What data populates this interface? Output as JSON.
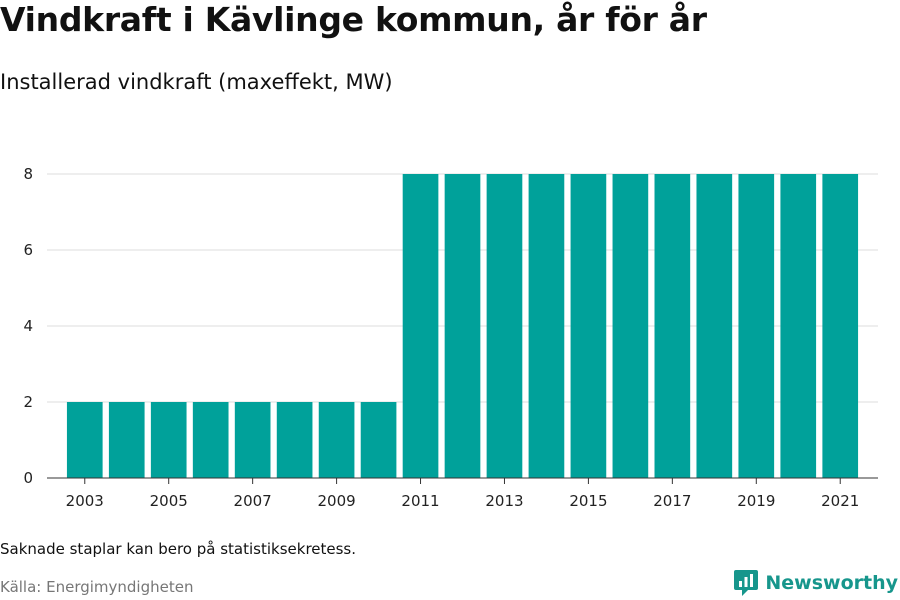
{
  "header": {
    "title": "Vindkraft i Kävlinge kommun, år för år",
    "subtitle": "Installerad vindkraft (maxeffekt, MW)"
  },
  "footer": {
    "note": "Saknade staplar kan bero på statistiksekretess.",
    "source": "Källa: Energimyndigheten",
    "brand": "Newsworthy"
  },
  "colors": {
    "bar": "#00a19a",
    "brand": "#17968c",
    "grid": "#dddddd"
  },
  "chart_data": {
    "type": "bar",
    "title": "Vindkraft i Kävlinge kommun, år för år",
    "subtitle": "Installerad vindkraft (maxeffekt, MW)",
    "categories": [
      "2003",
      "2004",
      "2005",
      "2006",
      "2007",
      "2008",
      "2009",
      "2010",
      "2011",
      "2012",
      "2013",
      "2014",
      "2015",
      "2016",
      "2017",
      "2018",
      "2019",
      "2020",
      "2021"
    ],
    "values": [
      2,
      2,
      2,
      2,
      2,
      2,
      2,
      2,
      8,
      8,
      8,
      8,
      8,
      8,
      8,
      8,
      8,
      8,
      8
    ],
    "xtick_labels": [
      "2003",
      "2005",
      "2007",
      "2009",
      "2011",
      "2013",
      "2015",
      "2017",
      "2019",
      "2021"
    ],
    "yticks": [
      0,
      2,
      4,
      6,
      8
    ],
    "ylim": [
      0,
      8
    ],
    "grid": true
  }
}
